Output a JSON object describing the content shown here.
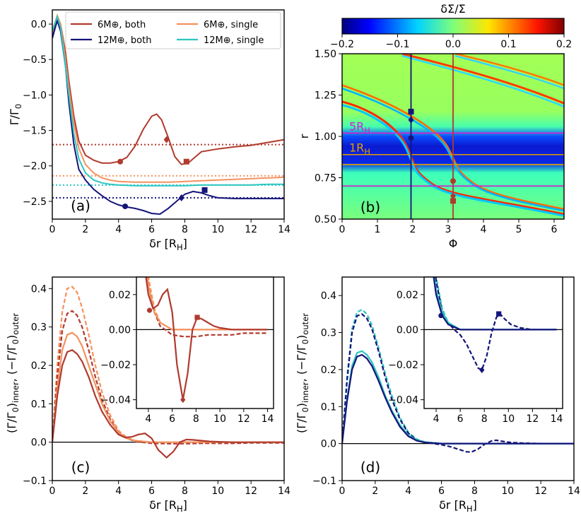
{
  "chart_data": [
    {
      "id": "a",
      "type": "line",
      "panel_label": "(a)",
      "xlabel": "δr [R_H]",
      "ylabel": "Γ/Γ_0",
      "xlim": [
        0,
        14
      ],
      "ylim": [
        -2.75,
        0.2
      ],
      "xticks": [
        0,
        2,
        4,
        6,
        8,
        10,
        12,
        14
      ],
      "yticks": [
        0.0,
        -0.5,
        -1.0,
        -1.5,
        -2.0,
        -2.5
      ],
      "legend": {
        "position": "top",
        "entries": [
          {
            "label": "6M⊕, both",
            "color": "#b03a2e"
          },
          {
            "label": "6M⊕, single",
            "color": "#f4915e"
          },
          {
            "label": "12M⊕, both",
            "color": "#14147a"
          },
          {
            "label": "12M⊕, single",
            "color": "#2cc6c0"
          }
        ]
      },
      "series": [
        {
          "name": "6M⊕, both",
          "color": "#b03a2e",
          "x": [
            0,
            0.3,
            0.5,
            0.8,
            1.0,
            1.3,
            1.6,
            2.0,
            2.5,
            3.0,
            3.5,
            4.0,
            4.5,
            5.0,
            5.5,
            6.0,
            6.3,
            6.6,
            7.0,
            7.4,
            7.8,
            8.2,
            8.6,
            9.0,
            10,
            11,
            12,
            13,
            14
          ],
          "y": [
            -0.2,
            0.1,
            0.0,
            -0.4,
            -0.8,
            -1.3,
            -1.65,
            -1.85,
            -1.92,
            -1.96,
            -1.96,
            -1.94,
            -1.88,
            -1.72,
            -1.48,
            -1.3,
            -1.27,
            -1.35,
            -1.6,
            -1.87,
            -1.98,
            -1.96,
            -1.88,
            -1.8,
            -1.76,
            -1.73,
            -1.71,
            -1.67,
            -1.63
          ]
        },
        {
          "name": "6M⊕, single",
          "color": "#f4915e",
          "x": [
            0,
            0.3,
            0.5,
            0.8,
            1.0,
            1.3,
            1.6,
            2.0,
            2.5,
            3.0,
            3.5,
            4.0,
            5,
            6,
            7,
            8,
            9,
            10,
            11,
            12,
            13,
            14
          ],
          "y": [
            -0.1,
            0.12,
            0.0,
            -0.5,
            -0.9,
            -1.4,
            -1.75,
            -1.98,
            -2.1,
            -2.17,
            -2.2,
            -2.22,
            -2.23,
            -2.23,
            -2.23,
            -2.22,
            -2.21,
            -2.2,
            -2.19,
            -2.18,
            -2.17,
            -2.16
          ]
        },
        {
          "name": "12M⊕, both",
          "color": "#14147a",
          "x": [
            0,
            0.3,
            0.5,
            0.8,
            1.0,
            1.3,
            1.6,
            2.0,
            2.5,
            3.0,
            3.5,
            4.0,
            4.5,
            5.0,
            5.5,
            6.0,
            6.5,
            7.0,
            7.5,
            8.0,
            8.5,
            9.0,
            9.5,
            10,
            11,
            12,
            13,
            14
          ],
          "y": [
            -0.2,
            0.05,
            -0.1,
            -0.6,
            -1.1,
            -1.7,
            -2.05,
            -2.2,
            -2.33,
            -2.42,
            -2.5,
            -2.55,
            -2.58,
            -2.6,
            -2.63,
            -2.67,
            -2.68,
            -2.6,
            -2.5,
            -2.4,
            -2.36,
            -2.38,
            -2.42,
            -2.45,
            -2.46,
            -2.46,
            -2.46,
            -2.46
          ]
        },
        {
          "name": "12M⊕, single",
          "color": "#2cc6c0",
          "x": [
            0,
            0.3,
            0.5,
            0.8,
            1.0,
            1.3,
            1.6,
            2.0,
            2.5,
            3.0,
            3.5,
            4.0,
            5,
            6,
            7,
            8,
            9,
            10,
            11,
            12,
            13,
            14
          ],
          "y": [
            -0.1,
            0.1,
            -0.05,
            -0.6,
            -1.0,
            -1.55,
            -1.9,
            -2.1,
            -2.2,
            -2.24,
            -2.26,
            -2.27,
            -2.28,
            -2.28,
            -2.28,
            -2.28,
            -2.27,
            -2.27,
            -2.27,
            -2.27,
            -2.26,
            -2.26
          ]
        }
      ],
      "hlines": [
        {
          "y": -1.7,
          "color": "#b03a2e"
        },
        {
          "y": -2.14,
          "color": "#f4915e"
        },
        {
          "y": -2.27,
          "color": "#2cc6c0"
        },
        {
          "y": -2.45,
          "color": "#14147a"
        }
      ],
      "markers": [
        {
          "x": 4.1,
          "y": -1.94,
          "shape": "circle",
          "color": "#b03a2e"
        },
        {
          "x": 6.9,
          "y": -1.63,
          "shape": "diamond",
          "color": "#b03a2e"
        },
        {
          "x": 8.1,
          "y": -1.94,
          "shape": "square",
          "color": "#b03a2e"
        },
        {
          "x": 4.4,
          "y": -2.57,
          "shape": "circle",
          "color": "#14147a"
        },
        {
          "x": 7.8,
          "y": -2.45,
          "shape": "diamond",
          "color": "#14147a"
        },
        {
          "x": 9.2,
          "y": -2.34,
          "shape": "square",
          "color": "#14147a"
        }
      ]
    },
    {
      "id": "b",
      "type": "heatmap",
      "panel_label": "(b)",
      "title": "δΣ/Σ",
      "xlabel": "Φ",
      "ylabel": "r",
      "xlim": [
        0,
        6.28
      ],
      "ylim": [
        0.5,
        1.5
      ],
      "xticks": [
        0,
        1,
        2,
        3,
        4,
        5,
        6
      ],
      "yticks": [
        0.5,
        0.75,
        1.0,
        1.25,
        1.5
      ],
      "colorbar": {
        "range": [
          -0.2,
          0.2
        ],
        "ticks": [
          -0.2,
          -0.1,
          0.0,
          0.1,
          0.2
        ],
        "tick_labels": [
          "−0.2",
          "−0.1",
          "0.0",
          "0.1",
          "0.2"
        ],
        "position": "top"
      },
      "annotations": [
        {
          "text": "5R_H",
          "r": 1.02,
          "color": "#d020d0"
        },
        {
          "text": "1R_H",
          "r": 0.89,
          "color": "#e0a000"
        }
      ],
      "hlines": [
        {
          "r": 1.02,
          "color": "#d020d0"
        },
        {
          "r": 0.89,
          "color": "#e0a000"
        },
        {
          "r": 0.83,
          "color": "#e0a000"
        },
        {
          "r": 0.7,
          "color": "#d020d0"
        }
      ],
      "vlines": [
        {
          "phi": 1.95,
          "color": "#14147a"
        },
        {
          "phi": 3.14,
          "color": "#b03a2e"
        }
      ],
      "markers": [
        {
          "phi": 1.95,
          "r": 1.15,
          "shape": "square",
          "color": "#14147a"
        },
        {
          "phi": 1.95,
          "r": 1.1,
          "shape": "diamond",
          "color": "#14147a"
        },
        {
          "phi": 1.95,
          "r": 0.99,
          "shape": "circle",
          "color": "#14147a"
        },
        {
          "phi": 3.14,
          "r": 0.73,
          "shape": "circle",
          "color": "#b03a2e"
        },
        {
          "phi": 3.14,
          "r": 0.64,
          "shape": "diamond",
          "color": "#b03a2e"
        },
        {
          "phi": 3.14,
          "r": 0.61,
          "shape": "square",
          "color": "#b03a2e"
        }
      ]
    },
    {
      "id": "c",
      "type": "line",
      "panel_label": "(c)",
      "xlabel": "δr [R_H]",
      "ylabel": "(Γ/Γ_0)_inner,  (−Γ/Γ_0)_outer",
      "xlim": [
        0,
        14
      ],
      "ylim": [
        -0.1,
        0.43
      ],
      "xticks": [
        0,
        2,
        4,
        6,
        8,
        10,
        12,
        14
      ],
      "yticks": [
        -0.1,
        0.0,
        0.1,
        0.2,
        0.3,
        0.4
      ],
      "series": [
        {
          "name": "6M⊕ single outer",
          "color": "#f4915e",
          "dashed": true,
          "x": [
            0,
            0.3,
            0.6,
            0.9,
            1.2,
            1.5,
            1.8,
            2.2,
            2.6,
            3.0,
            3.5,
            4.0,
            4.5,
            5,
            6,
            8,
            10,
            14
          ],
          "y": [
            0,
            0.2,
            0.34,
            0.4,
            0.405,
            0.39,
            0.35,
            0.28,
            0.2,
            0.13,
            0.07,
            0.03,
            0.012,
            0.004,
            0.0,
            0.0,
            0.0,
            0.0
          ]
        },
        {
          "name": "6M⊕ both outer",
          "color": "#b03a2e",
          "dashed": true,
          "x": [
            0,
            0.3,
            0.6,
            0.9,
            1.2,
            1.5,
            1.8,
            2.2,
            2.6,
            3.0,
            3.5,
            4.0,
            4.5,
            5,
            6,
            7,
            8,
            9,
            10,
            11,
            12,
            13,
            14
          ],
          "y": [
            0,
            0.17,
            0.29,
            0.335,
            0.342,
            0.33,
            0.3,
            0.24,
            0.17,
            0.11,
            0.06,
            0.025,
            0.01,
            0.002,
            -0.003,
            -0.004,
            -0.004,
            -0.003,
            -0.003,
            -0.003,
            -0.002,
            -0.002,
            -0.002
          ]
        },
        {
          "name": "6M⊕ single inner",
          "color": "#f4915e",
          "dashed": false,
          "x": [
            0,
            0.3,
            0.6,
            0.9,
            1.2,
            1.5,
            1.8,
            2.2,
            2.6,
            3.0,
            3.5,
            4.0,
            4.5,
            5,
            6,
            8,
            14
          ],
          "y": [
            0,
            0.14,
            0.24,
            0.28,
            0.285,
            0.275,
            0.25,
            0.2,
            0.15,
            0.1,
            0.055,
            0.025,
            0.01,
            0.004,
            0.0,
            0.0,
            0.0
          ]
        },
        {
          "name": "6M⊕ both inner",
          "color": "#b03a2e",
          "dashed": false,
          "x": [
            0,
            0.3,
            0.6,
            0.9,
            1.2,
            1.5,
            1.8,
            2.2,
            2.6,
            3.0,
            3.5,
            4.0,
            4.4,
            4.8,
            5.2,
            5.6,
            6.0,
            6.4,
            6.9,
            7.3,
            7.7,
            8.1,
            8.5,
            9.0,
            9.5,
            10,
            11,
            12,
            14
          ],
          "y": [
            0,
            0.12,
            0.2,
            0.235,
            0.24,
            0.23,
            0.21,
            0.17,
            0.12,
            0.08,
            0.045,
            0.02,
            0.012,
            0.014,
            0.02,
            0.023,
            0.01,
            -0.02,
            -0.04,
            -0.025,
            0.0,
            0.007,
            0.006,
            0.004,
            0.002,
            0.001,
            0.0,
            0.0,
            0.0
          ]
        }
      ],
      "inset": {
        "xlim": [
          3,
          14.5
        ],
        "ylim": [
          -0.045,
          0.03
        ],
        "xticks": [
          4,
          6,
          8,
          10,
          12,
          14
        ],
        "yticks": [
          0.02,
          0.0,
          -0.02,
          -0.04
        ],
        "markers": [
          {
            "x": 4.1,
            "y": 0.011,
            "shape": "circle",
            "color": "#b03a2e"
          },
          {
            "x": 6.9,
            "y": -0.04,
            "shape": "diamond",
            "color": "#b03a2e"
          },
          {
            "x": 8.1,
            "y": 0.007,
            "shape": "square",
            "color": "#b03a2e"
          }
        ]
      }
    },
    {
      "id": "d",
      "type": "line",
      "panel_label": "(d)",
      "xlabel": "δr [R_H]",
      "ylabel": "(Γ/Γ_0)_inner,  (−Γ/Γ_0)_outer",
      "xlim": [
        0,
        14
      ],
      "ylim": [
        -0.1,
        0.45
      ],
      "xticks": [
        0,
        2,
        4,
        6,
        8,
        10,
        12,
        14
      ],
      "yticks": [
        -0.1,
        0.0,
        0.1,
        0.2,
        0.3,
        0.4
      ],
      "series": [
        {
          "name": "12M⊕ single outer",
          "color": "#2cc6c0",
          "dashed": true,
          "x": [
            0,
            0.3,
            0.6,
            0.9,
            1.2,
            1.5,
            1.8,
            2.2,
            2.6,
            3.0,
            3.5,
            4.0,
            4.5,
            5,
            6,
            8,
            14
          ],
          "y": [
            0,
            0.18,
            0.31,
            0.355,
            0.362,
            0.35,
            0.32,
            0.26,
            0.19,
            0.13,
            0.07,
            0.03,
            0.012,
            0.004,
            0.0,
            0.0,
            0.0
          ]
        },
        {
          "name": "12M⊕ both outer",
          "color": "#14147a",
          "dashed": true,
          "x": [
            0,
            0.3,
            0.6,
            0.9,
            1.2,
            1.5,
            1.8,
            2.2,
            2.6,
            3.0,
            3.5,
            4.0,
            4.5,
            5,
            5.5,
            6,
            6.5,
            7,
            7.5,
            7.8,
            8.2,
            8.6,
            9.0,
            9.3,
            9.7,
            10.2,
            11,
            12,
            13,
            14
          ],
          "y": [
            0,
            0.17,
            0.3,
            0.345,
            0.35,
            0.338,
            0.31,
            0.25,
            0.18,
            0.12,
            0.065,
            0.028,
            0.01,
            0.004,
            0.0,
            -0.003,
            -0.008,
            -0.015,
            -0.022,
            -0.023,
            -0.015,
            -0.002,
            0.007,
            0.009,
            0.006,
            0.003,
            0.001,
            0.0,
            0.0,
            0.0
          ]
        },
        {
          "name": "12M⊕ single inner",
          "color": "#2cc6c0",
          "dashed": false,
          "x": [
            0,
            0.3,
            0.6,
            0.9,
            1.2,
            1.5,
            1.8,
            2.2,
            2.6,
            3.0,
            3.5,
            4.0,
            4.5,
            5,
            6,
            8,
            14
          ],
          "y": [
            0,
            0.12,
            0.21,
            0.245,
            0.25,
            0.24,
            0.22,
            0.18,
            0.13,
            0.09,
            0.05,
            0.022,
            0.01,
            0.004,
            0.0,
            0.0,
            0.0
          ]
        },
        {
          "name": "12M⊕ both inner",
          "color": "#14147a",
          "dashed": false,
          "x": [
            0,
            0.3,
            0.6,
            0.9,
            1.2,
            1.5,
            1.8,
            2.2,
            2.6,
            3.0,
            3.5,
            4.0,
            4.5,
            5,
            6,
            8,
            14
          ],
          "y": [
            0,
            0.115,
            0.2,
            0.235,
            0.24,
            0.23,
            0.21,
            0.17,
            0.125,
            0.085,
            0.045,
            0.02,
            0.008,
            0.003,
            0.0,
            0.0,
            0.0
          ]
        }
      ],
      "inset": {
        "xlim": [
          3,
          14.5
        ],
        "ylim": [
          -0.045,
          0.03
        ],
        "xticks": [
          4,
          6,
          8,
          10,
          12,
          14
        ],
        "yticks": [
          0.02,
          0.0,
          -0.02,
          -0.04
        ],
        "markers": [
          {
            "x": 4.4,
            "y": 0.008,
            "shape": "circle",
            "color": "#14147a"
          },
          {
            "x": 7.8,
            "y": -0.023,
            "shape": "diamond",
            "color": "#14147a"
          },
          {
            "x": 9.2,
            "y": 0.009,
            "shape": "square",
            "color": "#14147a"
          }
        ]
      }
    }
  ]
}
